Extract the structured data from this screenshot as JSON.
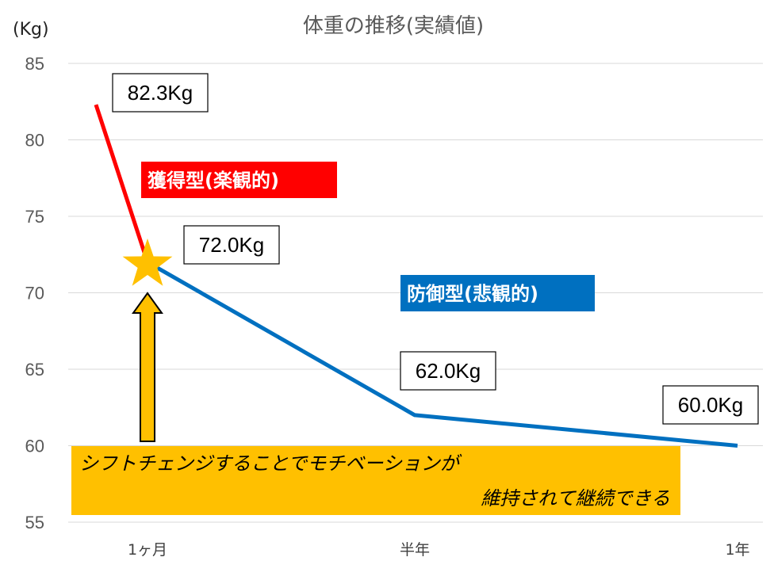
{
  "chart_data": {
    "type": "line",
    "title": "体重の推移(実績値)",
    "ylabel": "(Kg)",
    "ylim": [
      55,
      85
    ],
    "yticks": [
      55,
      60,
      65,
      70,
      75,
      80,
      85
    ],
    "categories": [
      "1ヶ月",
      "半年",
      "1年"
    ],
    "grid": true,
    "series": [
      {
        "name": "獲得型(楽観的)",
        "color": "#FF0000",
        "points": [
          {
            "x": 0,
            "y": 82.3
          },
          {
            "x": 1,
            "y": 72.0
          }
        ]
      },
      {
        "name": "防御型(悲観的)",
        "color": "#0070C0",
        "points": [
          {
            "x": 1,
            "y": 72.0
          },
          {
            "x": 6,
            "y": 62.0
          },
          {
            "x": 12,
            "y": 60.0
          }
        ]
      }
    ],
    "data_labels": [
      "82.3Kg",
      "72.0Kg",
      "62.0Kg",
      "60.0Kg"
    ],
    "annotation": {
      "lines": [
        "シフトチェンジすることでモチベーションが",
        "維持されて継続できる"
      ],
      "color": "#FFC000"
    },
    "marker_color": "#FFC000"
  }
}
